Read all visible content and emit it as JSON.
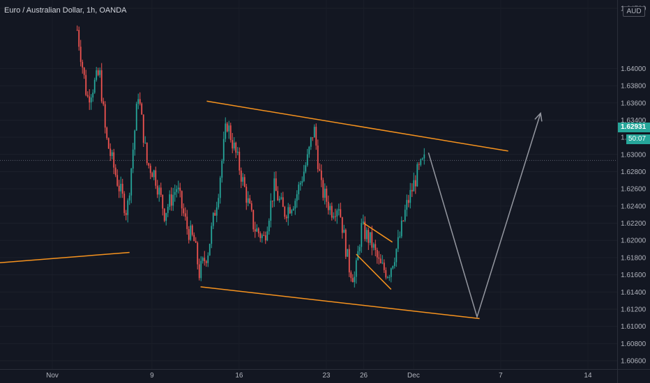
{
  "chart_title": "Euro / Australian Dollar, 1h, OANDA",
  "currency_unit": "AUD",
  "current_price": "1.62931",
  "countdown": "50:07",
  "colors": {
    "background": "#131722",
    "up": "#26a69a",
    "down": "#ef5350",
    "trendline": "#f7931e",
    "projection": "#9598a1",
    "text": "#b2b5be"
  },
  "chart_data": {
    "type": "candlestick",
    "title": "Euro / Australian Dollar, 1h, OANDA",
    "ylim": [
      1.606,
      1.647
    ],
    "y_ticks": [
      "1.64700",
      "1.64000",
      "1.63800",
      "1.63600",
      "1.63400",
      "1.63200",
      "1.63000",
      "1.62800",
      "1.62600",
      "1.62400",
      "1.62200",
      "1.62000",
      "1.61800",
      "1.61600",
      "1.61400",
      "1.61200",
      "1.61000",
      "1.60800",
      "1.60600"
    ],
    "x_ticks": [
      {
        "label": "Nov",
        "day": 1
      },
      {
        "label": "9",
        "day": 9
      },
      {
        "label": "16",
        "day": 16
      },
      {
        "label": "23",
        "day": 23
      },
      {
        "label": "26",
        "day": 26
      },
      {
        "label": "Dec",
        "day": 30
      },
      {
        "label": "7",
        "day": 37
      },
      {
        "label": "14",
        "day": 44
      }
    ],
    "price_path": [
      {
        "day": 3.0,
        "price": 1.6445
      },
      {
        "day": 3.8,
        "price": 1.6365
      },
      {
        "day": 4.8,
        "price": 1.6395
      },
      {
        "day": 5.3,
        "price": 1.632
      },
      {
        "day": 6.3,
        "price": 1.6265
      },
      {
        "day": 7.0,
        "price": 1.6232
      },
      {
        "day": 7.9,
        "price": 1.6372
      },
      {
        "day": 8.6,
        "price": 1.629
      },
      {
        "day": 9.2,
        "price": 1.6278
      },
      {
        "day": 10.0,
        "price": 1.6232
      },
      {
        "day": 11.0,
        "price": 1.6262
      },
      {
        "day": 11.8,
        "price": 1.6215
      },
      {
        "day": 12.4,
        "price": 1.6198
      },
      {
        "day": 12.8,
        "price": 1.6162
      },
      {
        "day": 13.5,
        "price": 1.6188
      },
      {
        "day": 14.3,
        "price": 1.6255
      },
      {
        "day": 15.0,
        "price": 1.6338
      },
      {
        "day": 15.9,
        "price": 1.6292
      },
      {
        "day": 17.2,
        "price": 1.6215
      },
      {
        "day": 18.0,
        "price": 1.6202
      },
      {
        "day": 18.8,
        "price": 1.6262
      },
      {
        "day": 19.6,
        "price": 1.6232
      },
      {
        "day": 20.5,
        "price": 1.6248
      },
      {
        "day": 21.5,
        "price": 1.6295
      },
      {
        "day": 22.0,
        "price": 1.6332
      },
      {
        "day": 22.6,
        "price": 1.626
      },
      {
        "day": 23.4,
        "price": 1.6235
      },
      {
        "day": 24.0,
        "price": 1.6242
      },
      {
        "day": 24.8,
        "price": 1.617
      },
      {
        "day": 25.3,
        "price": 1.6155
      },
      {
        "day": 25.8,
        "price": 1.6215
      },
      {
        "day": 26.6,
        "price": 1.6198
      },
      {
        "day": 27.3,
        "price": 1.617
      },
      {
        "day": 28.0,
        "price": 1.6162
      },
      {
        "day": 28.8,
        "price": 1.6198
      },
      {
        "day": 29.4,
        "price": 1.6238
      },
      {
        "day": 30.3,
        "price": 1.6278
      },
      {
        "day": 31.0,
        "price": 1.6296
      }
    ],
    "drawings": [
      {
        "kind": "trendline",
        "role": "upper-channel",
        "from": {
          "day": 13.4,
          "price": 1.6362
        },
        "to": {
          "day": 37.6,
          "price": 1.6304
        }
      },
      {
        "kind": "trendline",
        "role": "lower-channel",
        "from": {
          "day": 12.9,
          "price": 1.6146
        },
        "to": {
          "day": 35.3,
          "price": 1.6109
        }
      },
      {
        "kind": "trendline",
        "role": "left-support",
        "from": {
          "day": -5.0,
          "price": 1.6172
        },
        "to": {
          "day": 7.2,
          "price": 1.6186
        }
      },
      {
        "kind": "trendline",
        "role": "wedge-upper",
        "from": {
          "day": 26.0,
          "price": 1.622
        },
        "to": {
          "day": 28.3,
          "price": 1.6198
        }
      },
      {
        "kind": "trendline",
        "role": "wedge-lower",
        "from": {
          "day": 25.4,
          "price": 1.6184
        },
        "to": {
          "day": 28.2,
          "price": 1.6143
        }
      },
      {
        "kind": "projection",
        "points": [
          {
            "day": 31.2,
            "price": 1.6302
          },
          {
            "day": 35.1,
            "price": 1.6111
          },
          {
            "day": 40.2,
            "price": 1.6348
          }
        ]
      }
    ]
  }
}
